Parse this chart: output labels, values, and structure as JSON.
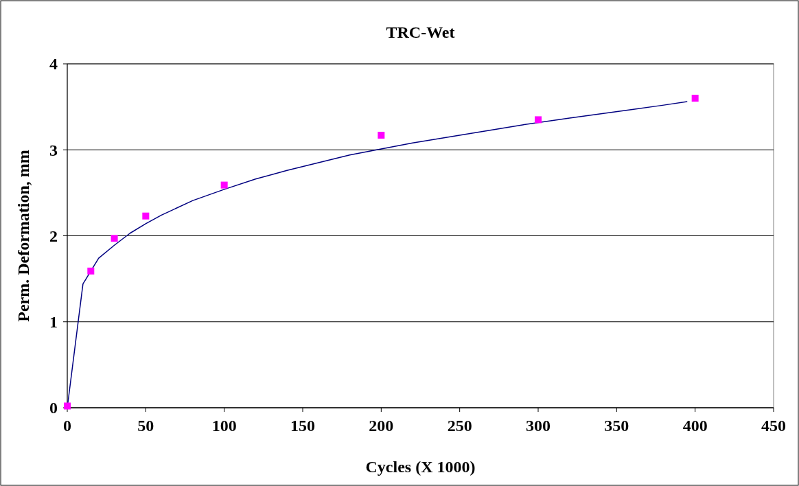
{
  "chart_data": {
    "type": "scatter",
    "title": "TRC-Wet",
    "xlabel": "Cycles (X 1000)",
    "ylabel": "Perm. Deformation, mm",
    "xlim": [
      0,
      450
    ],
    "xticks": [
      0,
      50,
      100,
      150,
      200,
      250,
      300,
      350,
      400,
      450
    ],
    "ylim": [
      0,
      4
    ],
    "yticks": [
      0,
      1,
      2,
      3,
      4
    ],
    "grid": "y",
    "series": [
      {
        "color": "#ff00ff",
        "marker": "square",
        "x": [
          0,
          15,
          30,
          50,
          100,
          200,
          300,
          400
        ],
        "values": [
          0.02,
          1.59,
          1.97,
          2.23,
          2.59,
          3.17,
          3.35,
          3.6
        ]
      },
      {
        "type": "line",
        "color": "#000080",
        "marker": "none",
        "line_style": "solid",
        "x": [
          0,
          10,
          20,
          30,
          40,
          50,
          60,
          80,
          100,
          120,
          140,
          160,
          180,
          200,
          220,
          240,
          260,
          280,
          290,
          320,
          340,
          360,
          380,
          395
        ],
        "values": [
          0,
          1.44,
          1.74,
          1.89,
          2.03,
          2.14,
          2.24,
          2.41,
          2.54,
          2.66,
          2.76,
          2.85,
          2.94,
          3.01,
          3.08,
          3.14,
          3.2,
          3.26,
          3.29,
          3.37,
          3.42,
          3.47,
          3.52,
          3.56
        ]
      }
    ]
  }
}
